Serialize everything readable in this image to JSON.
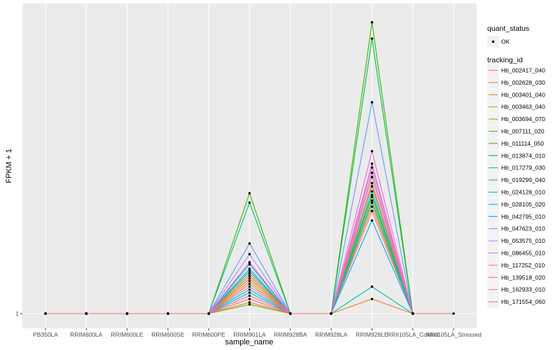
{
  "chart_data": {
    "type": "line",
    "xlabel": "sample_name",
    "ylabel": "FPKM + 1",
    "y_tick_labels": [
      "1"
    ],
    "y_scale": "log",
    "ylim": [
      1,
      40
    ],
    "categories": [
      "PB350LA",
      "RRIM600LA",
      "RRIM600LE",
      "RRIM600SE",
      "RRIM600PE",
      "RRIM901LA",
      "RRIM928BA",
      "RRIM928LA",
      "RRIM928LE",
      "RRII105LA_Control",
      "RRII105LA_Stressed"
    ],
    "legend_quant": {
      "title": "quant_status",
      "items": [
        "OK"
      ]
    },
    "legend_tracking_title": "tracking_id",
    "series": [
      {
        "name": "Hb_002417_040",
        "color": "#F8766D",
        "values": [
          1,
          1,
          1,
          1,
          1,
          1.5,
          1,
          1,
          3.6,
          1,
          null
        ]
      },
      {
        "name": "Hb_002628_030",
        "color": "#EA8331",
        "values": [
          1,
          1,
          1,
          1,
          1,
          1.15,
          1,
          1,
          1.2,
          1,
          null
        ]
      },
      {
        "name": "Hb_003401_040",
        "color": "#D89000",
        "values": [
          1,
          1,
          1,
          1,
          1,
          1.55,
          1,
          1,
          3.8,
          1,
          null
        ]
      },
      {
        "name": "Hb_003463_040",
        "color": "#C09B00",
        "values": [
          1,
          1,
          1,
          1,
          1,
          1.45,
          1,
          1,
          4.3,
          1,
          null
        ]
      },
      {
        "name": "Hb_003694_070",
        "color": "#A3A500",
        "values": [
          1,
          1,
          1,
          1,
          1,
          1.6,
          1,
          1,
          4.1,
          1,
          null
        ]
      },
      {
        "name": "Hb_007111_020",
        "color": "#7CAE00",
        "values": [
          1,
          1,
          1,
          1,
          1,
          1.12,
          1,
          1,
          4.9,
          1,
          null
        ]
      },
      {
        "name": "Hb_011114_050",
        "color": "#39B600",
        "values": [
          1,
          1,
          1,
          1,
          1,
          4.5,
          1,
          1,
          38,
          1,
          null
        ]
      },
      {
        "name": "Hb_013874_010",
        "color": "#00BB4E",
        "values": [
          1,
          1,
          1,
          1,
          1,
          1.7,
          1,
          1,
          31,
          1,
          null
        ]
      },
      {
        "name": "Hb_017279_030",
        "color": "#00BF7D",
        "values": [
          1,
          1,
          1,
          1,
          1,
          4.0,
          1,
          1,
          4.4,
          1,
          null
        ]
      },
      {
        "name": "Hb_019299_040",
        "color": "#00C1A3",
        "values": [
          1,
          1,
          1,
          1,
          1,
          1.35,
          1,
          1,
          1.4,
          1,
          null
        ]
      },
      {
        "name": "Hb_024128_010",
        "color": "#00BFC4",
        "values": [
          1,
          1,
          1,
          1,
          1,
          1.75,
          1,
          1,
          4.6,
          1,
          null
        ]
      },
      {
        "name": "Hb_028105_020",
        "color": "#00B8E7",
        "values": [
          1,
          1,
          1,
          1,
          1,
          1.3,
          1,
          1,
          4.0,
          1,
          null
        ]
      },
      {
        "name": "Hb_042795_010",
        "color": "#00A9FF",
        "values": [
          1,
          1,
          1,
          1,
          1,
          1.85,
          1,
          1,
          3.2,
          1,
          null
        ]
      },
      {
        "name": "Hb_047623_010",
        "color": "#619CFF",
        "values": [
          1,
          1,
          1,
          1,
          1,
          2.4,
          1,
          1,
          14,
          1,
          null
        ]
      },
      {
        "name": "Hb_053575_010",
        "color": "#AE87FF",
        "values": [
          1,
          1,
          1,
          1,
          1,
          2.1,
          1,
          1,
          5.8,
          1,
          null
        ]
      },
      {
        "name": "Hb_086455_010",
        "color": "#DB72FB",
        "values": [
          1,
          1,
          1,
          1,
          1,
          1.4,
          1,
          1,
          6.5,
          1,
          null
        ]
      },
      {
        "name": "Hb_117252_010",
        "color": "#F564E3",
        "values": [
          1,
          1,
          1,
          1,
          1,
          1.65,
          1,
          1,
          7.6,
          1,
          null
        ]
      },
      {
        "name": "Hb_139518_020",
        "color": "#FF61C3",
        "values": [
          1,
          1,
          1,
          1,
          1,
          1.9,
          1,
          1,
          5.1,
          1,
          null
        ]
      },
      {
        "name": "Hb_162933_010",
        "color": "#FF6C91",
        "values": [
          1,
          1,
          1,
          1,
          1,
          1.25,
          1,
          1,
          6.2,
          1,
          null
        ]
      },
      {
        "name": "Hb_171554_060",
        "color": "#F8766D",
        "values": [
          1,
          1,
          1,
          1,
          1,
          1.2,
          1,
          1,
          5.5,
          1,
          1
        ]
      }
    ]
  }
}
